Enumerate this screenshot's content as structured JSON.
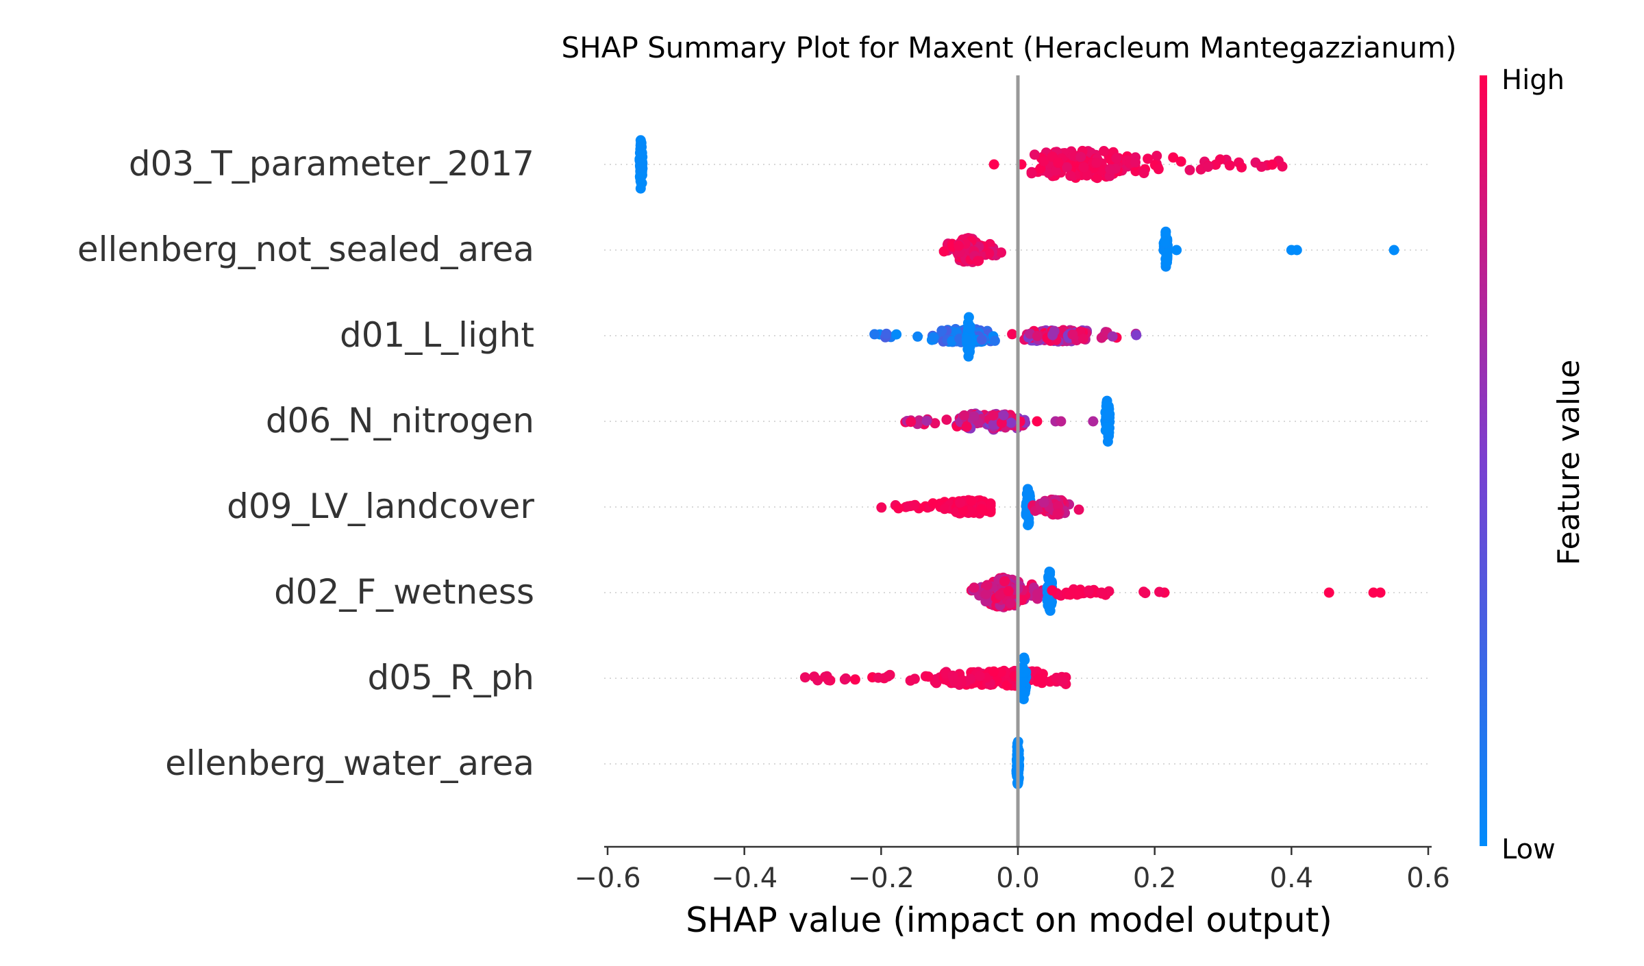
{
  "chart_data": {
    "type": "scatter",
    "title": "SHAP Summary Plot for Maxent (Heracleum Mantegazzianum)",
    "xlabel": "SHAP value (impact on model output)",
    "xlim": [
      -0.605,
      0.605
    ],
    "xticks": [
      -0.6,
      -0.4,
      -0.2,
      0.0,
      0.2,
      0.4,
      0.6
    ],
    "xtick_labels": [
      "−0.6",
      "−0.4",
      "−0.2",
      "0.0",
      "0.2",
      "0.4",
      "0.6"
    ],
    "zero_line": 0.0,
    "grid": false,
    "colorbar": {
      "label": "Feature value",
      "high_label": "High",
      "low_label": "Low",
      "low_color": "#008bfb",
      "high_color": "#ff0051"
    },
    "features": [
      {
        "name": "d03_T_parameter_2017",
        "clusters": [
          {
            "min": -0.553,
            "max": -0.549,
            "n": 60,
            "v0": 0.0,
            "v1": 0.02,
            "spread": 1.0
          },
          {
            "min": 0.02,
            "max": 0.39,
            "n": 170,
            "peak": 0.1,
            "v0": 0.9,
            "v1": 1.0,
            "spread": 0.5
          }
        ],
        "points": [
          {
            "x": -0.035,
            "v": 1.0
          },
          {
            "x": 0.005,
            "v": 1.0
          }
        ]
      },
      {
        "name": "ellenberg_not_sealed_area",
        "clusters": [
          {
            "min": -0.11,
            "max": -0.02,
            "n": 130,
            "peak": -0.07,
            "v0": 0.85,
            "v1": 1.0,
            "spread": 0.45
          },
          {
            "min": 0.213,
            "max": 0.219,
            "n": 40,
            "v0": 0.0,
            "v1": 0.02,
            "spread": 0.7
          }
        ],
        "points": [
          {
            "x": 0.232,
            "v": 0.0
          },
          {
            "x": 0.4,
            "v": 0.0
          },
          {
            "x": 0.408,
            "v": 0.0
          },
          {
            "x": 0.55,
            "v": 0.0
          }
        ]
      },
      {
        "name": "d01_L_light",
        "clusters": [
          {
            "min": -0.21,
            "max": -0.02,
            "n": 110,
            "peak": -0.08,
            "v0": 0.0,
            "v1": 0.3,
            "spread": 0.25
          },
          {
            "min": -0.075,
            "max": -0.069,
            "n": 40,
            "v0": 0.0,
            "v1": 0.02,
            "spread": 0.8
          },
          {
            "min": -0.02,
            "max": 0.19,
            "n": 110,
            "peak": 0.06,
            "v0": 0.5,
            "v1": 1.0,
            "spread": 0.22
          }
        ],
        "points": []
      },
      {
        "name": "d06_N_nitrogen",
        "clusters": [
          {
            "min": -0.17,
            "max": 0.02,
            "n": 120,
            "peak": -0.04,
            "v0": 0.5,
            "v1": 1.0,
            "spread": 0.3
          },
          {
            "min": 0.128,
            "max": 0.134,
            "n": 35,
            "v0": 0.0,
            "v1": 0.02,
            "spread": 0.8
          }
        ],
        "points": [
          {
            "x": 0.055,
            "v": 0.7
          },
          {
            "x": 0.063,
            "v": 0.75
          },
          {
            "x": 0.11,
            "v": 0.7
          },
          {
            "x": 0.028,
            "v": 1.0
          }
        ]
      },
      {
        "name": "d09_LV_landcover",
        "clusters": [
          {
            "min": -0.2,
            "max": -0.04,
            "n": 120,
            "peak": -0.07,
            "v0": 0.95,
            "v1": 1.0,
            "spread": 0.25
          },
          {
            "min": 0.012,
            "max": 0.018,
            "n": 40,
            "v0": 0.0,
            "v1": 0.02,
            "spread": 0.8
          },
          {
            "min": 0.02,
            "max": 0.09,
            "n": 70,
            "peak": 0.055,
            "v0": 0.75,
            "v1": 0.95,
            "spread": 0.3
          }
        ],
        "points": []
      },
      {
        "name": "d02_F_wetness",
        "clusters": [
          {
            "min": -0.07,
            "max": 0.04,
            "n": 150,
            "peak": -0.02,
            "v0": 0.7,
            "v1": 0.98,
            "spread": 0.55
          },
          {
            "min": 0.043,
            "max": 0.05,
            "n": 40,
            "v0": 0.0,
            "v1": 0.02,
            "spread": 0.8
          },
          {
            "min": 0.05,
            "max": 0.23,
            "n": 30,
            "peak": 0.08,
            "v0": 0.95,
            "v1": 1.0,
            "spread": 0.12
          }
        ],
        "points": [
          {
            "x": 0.455,
            "v": 1.0
          },
          {
            "x": 0.52,
            "v": 1.0
          },
          {
            "x": 0.53,
            "v": 1.0
          }
        ]
      },
      {
        "name": "d05_R_ph",
        "clusters": [
          {
            "min": -0.34,
            "max": 0.07,
            "n": 160,
            "peak": -0.02,
            "v0": 0.92,
            "v1": 1.0,
            "spread": 0.28
          },
          {
            "min": 0.005,
            "max": 0.012,
            "n": 40,
            "v0": 0.0,
            "v1": 0.02,
            "spread": 0.8
          }
        ],
        "points": []
      },
      {
        "name": "ellenberg_water_area",
        "clusters": [
          {
            "min": -0.002,
            "max": 0.002,
            "n": 60,
            "v0": 0.0,
            "v1": 0.02,
            "spread": 0.85
          }
        ],
        "points": []
      }
    ]
  }
}
